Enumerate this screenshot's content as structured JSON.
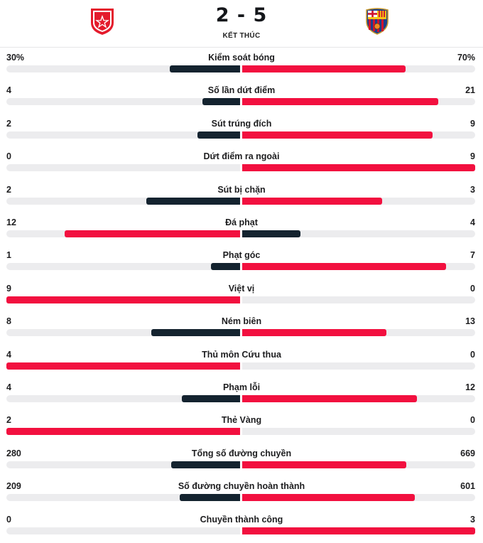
{
  "match": {
    "home_logo": "red-star-crest-icon",
    "away_logo": "fc-barcelona-crest-icon",
    "score": "2 - 5",
    "status": "KẾT THÚC"
  },
  "colors": {
    "winner": "#f2103f",
    "loser": "#14232f",
    "track": "#ececee"
  },
  "stats": [
    {
      "label": "Kiểm soát bóng",
      "home": "30%",
      "away": "70%",
      "home_value": 30,
      "away_value": 70
    },
    {
      "label": "Số lần dứt điểm",
      "home": "4",
      "away": "21",
      "home_value": 4,
      "away_value": 21
    },
    {
      "label": "Sút trúng đích",
      "home": "2",
      "away": "9",
      "home_value": 2,
      "away_value": 9
    },
    {
      "label": "Dứt điểm ra ngoài",
      "home": "0",
      "away": "9",
      "home_value": 0,
      "away_value": 9
    },
    {
      "label": "Sút bị chặn",
      "home": "2",
      "away": "3",
      "home_value": 2,
      "away_value": 3
    },
    {
      "label": "Đá phạt",
      "home": "12",
      "away": "4",
      "home_value": 12,
      "away_value": 4
    },
    {
      "label": "Phạt góc",
      "home": "1",
      "away": "7",
      "home_value": 1,
      "away_value": 7
    },
    {
      "label": "Việt vị",
      "home": "9",
      "away": "0",
      "home_value": 9,
      "away_value": 0
    },
    {
      "label": "Ném biên",
      "home": "8",
      "away": "13",
      "home_value": 8,
      "away_value": 13
    },
    {
      "label": "Thủ môn Cứu thua",
      "home": "4",
      "away": "0",
      "home_value": 4,
      "away_value": 0
    },
    {
      "label": "Phạm lỗi",
      "home": "4",
      "away": "12",
      "home_value": 4,
      "away_value": 12
    },
    {
      "label": "Thẻ Vàng",
      "home": "2",
      "away": "0",
      "home_value": 2,
      "away_value": 0
    },
    {
      "label": "Tổng số đường chuyền",
      "home": "280",
      "away": "669",
      "home_value": 280,
      "away_value": 669
    },
    {
      "label": "Số đường chuyền hoàn thành",
      "home": "209",
      "away": "601",
      "home_value": 209,
      "away_value": 601
    },
    {
      "label": "Chuyền thành công",
      "home": "0",
      "away": "3",
      "home_value": 0,
      "away_value": 3
    }
  ]
}
